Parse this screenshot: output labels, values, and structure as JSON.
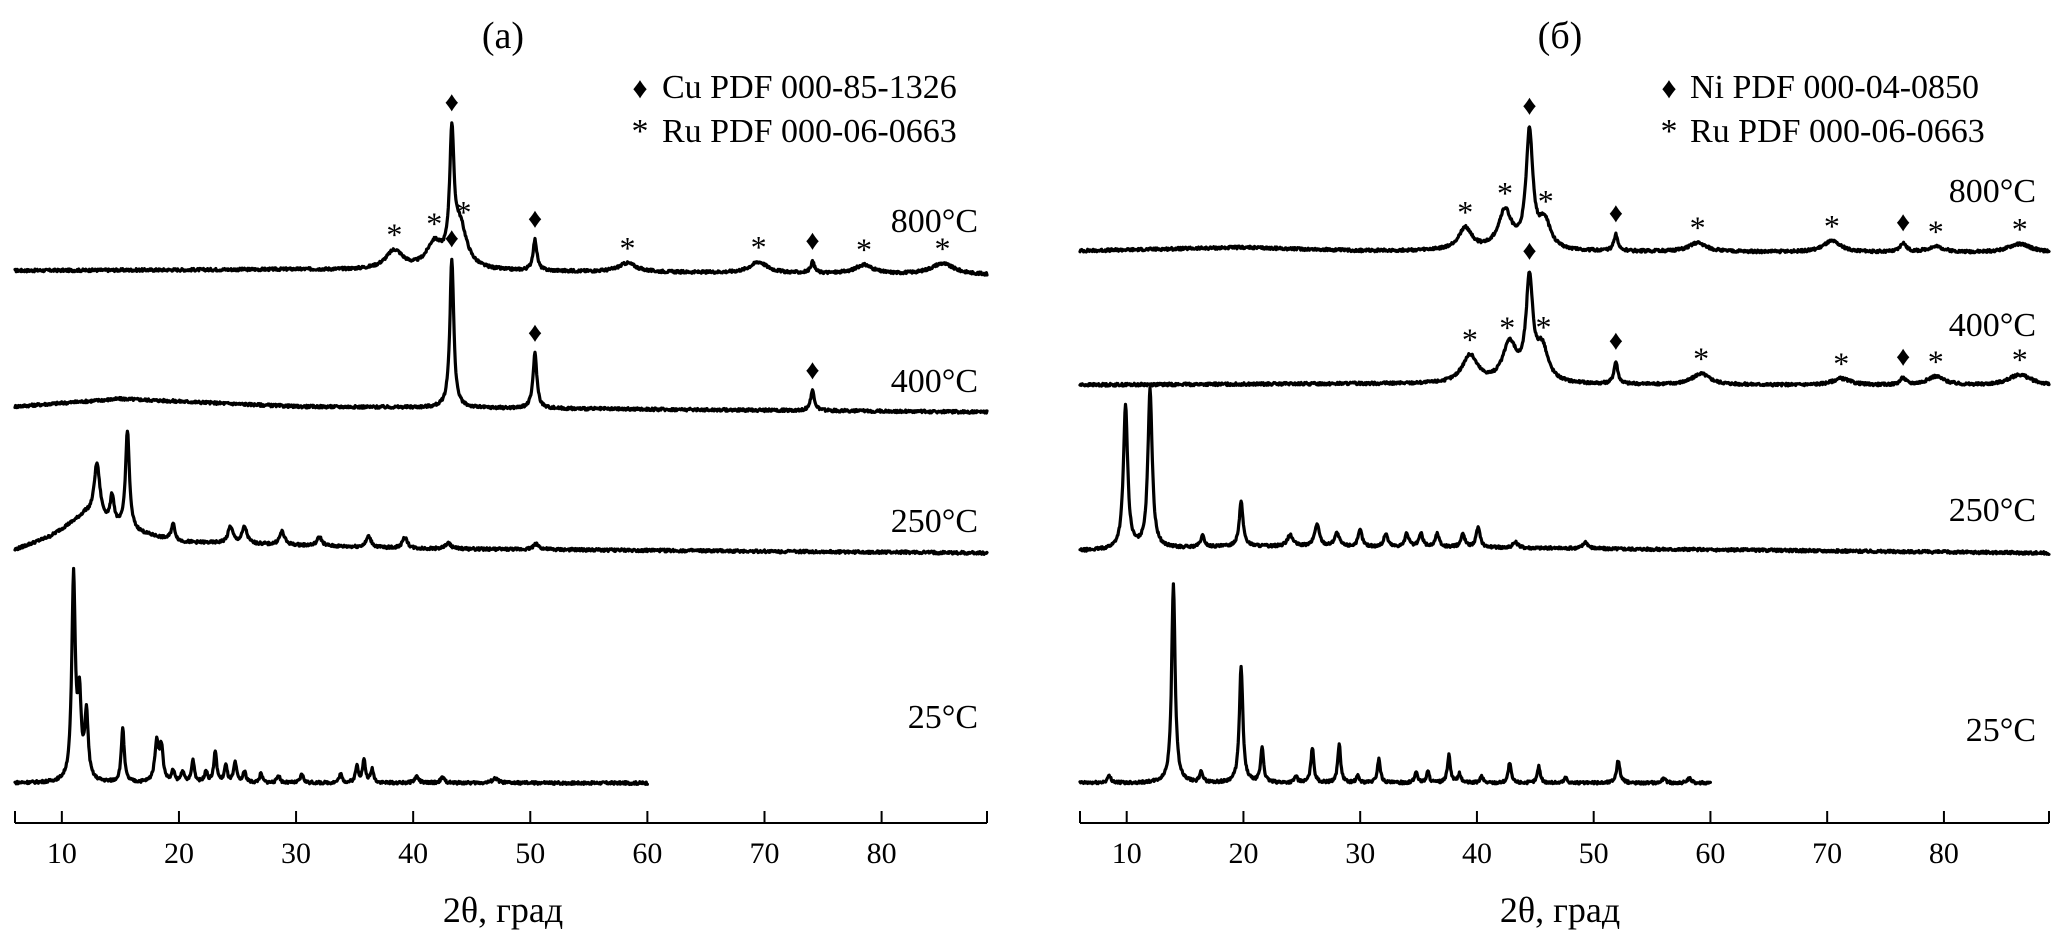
{
  "chart_data": [
    {
      "type": "line",
      "title": "(а)",
      "xlabel": "2θ, град",
      "ylabel": "",
      "xlim": [
        6,
        89
      ],
      "xticks": [
        "10",
        "20",
        "30",
        "40",
        "50",
        "60",
        "70",
        "80"
      ],
      "xtick_values": [
        10,
        20,
        30,
        40,
        50,
        60,
        70,
        80
      ],
      "legend": {
        "placement": "top-right",
        "entries": [
          {
            "symbol": "♦",
            "label": "Cu PDF 000-85-1326"
          },
          {
            "symbol": "*",
            "label": "Ru PDF 000-06-0663"
          }
        ]
      },
      "series": [
        {
          "name": "800°C",
          "x_range": [
            6,
            89
          ],
          "baseline": [
            [
              6,
              0.04
            ],
            [
              30,
              0.05
            ],
            [
              89,
              0.0
            ]
          ],
          "peaks": [
            {
              "x": 38.4,
              "h": 0.17,
              "w": 0.9
            },
            {
              "x": 41.8,
              "h": 0.22,
              "w": 0.8
            },
            {
              "x": 43.3,
              "h": 1.1,
              "w": 0.22
            },
            {
              "x": 44.0,
              "h": 0.38,
              "w": 0.7
            },
            {
              "x": 50.4,
              "h": 0.28,
              "w": 0.2
            },
            {
              "x": 58.3,
              "h": 0.08,
              "w": 0.9
            },
            {
              "x": 69.5,
              "h": 0.1,
              "w": 0.9
            },
            {
              "x": 74.1,
              "h": 0.1,
              "w": 0.2
            },
            {
              "x": 78.5,
              "h": 0.08,
              "w": 0.9
            },
            {
              "x": 85.2,
              "h": 0.1,
              "w": 1.2
            }
          ],
          "markers": [
            {
              "x": 43.3,
              "symbol": "♦"
            },
            {
              "x": 38.4,
              "symbol": "*"
            },
            {
              "x": 41.8,
              "symbol": "*"
            },
            {
              "x": 44.3,
              "symbol": "*"
            },
            {
              "x": 50.4,
              "symbol": "♦"
            },
            {
              "x": 58.3,
              "symbol": "*"
            },
            {
              "x": 69.5,
              "symbol": "*"
            },
            {
              "x": 74.1,
              "symbol": "♦"
            },
            {
              "x": 78.5,
              "symbol": "*"
            },
            {
              "x": 85.2,
              "symbol": "*"
            }
          ]
        },
        {
          "name": "400°C",
          "x_range": [
            6,
            89
          ],
          "baseline": [
            [
              6,
              0.05
            ],
            [
              15,
              0.12
            ],
            [
              30,
              0.05
            ],
            [
              89,
              0.0
            ]
          ],
          "peaks": [
            {
              "x": 43.3,
              "h": 1.35,
              "w": 0.2
            },
            {
              "x": 50.4,
              "h": 0.5,
              "w": 0.2
            },
            {
              "x": 74.1,
              "h": 0.18,
              "w": 0.2
            }
          ],
          "markers": [
            {
              "x": 43.3,
              "symbol": "♦"
            },
            {
              "x": 50.4,
              "symbol": "♦"
            },
            {
              "x": 74.1,
              "symbol": "♦"
            }
          ]
        },
        {
          "name": "250°C",
          "x_range": [
            6,
            89
          ],
          "baseline": [
            [
              6,
              0.03
            ],
            [
              9,
              0.15
            ],
            [
              12,
              0.35
            ],
            [
              15,
              0.22
            ],
            [
              20,
              0.1
            ],
            [
              40,
              0.04
            ],
            [
              89,
              0.0
            ]
          ],
          "peaks": [
            {
              "x": 13.0,
              "h": 0.5,
              "w": 0.3
            },
            {
              "x": 14.3,
              "h": 0.25,
              "w": 0.2
            },
            {
              "x": 15.6,
              "h": 0.9,
              "w": 0.2
            },
            {
              "x": 19.5,
              "h": 0.15,
              "w": 0.2
            },
            {
              "x": 24.4,
              "h": 0.15,
              "w": 0.25
            },
            {
              "x": 25.6,
              "h": 0.15,
              "w": 0.25
            },
            {
              "x": 28.8,
              "h": 0.12,
              "w": 0.25
            },
            {
              "x": 32.0,
              "h": 0.08,
              "w": 0.25
            },
            {
              "x": 36.2,
              "h": 0.1,
              "w": 0.25
            },
            {
              "x": 39.3,
              "h": 0.1,
              "w": 0.25
            },
            {
              "x": 43.0,
              "h": 0.05,
              "w": 0.3
            },
            {
              "x": 50.5,
              "h": 0.05,
              "w": 0.3
            }
          ],
          "markers": []
        },
        {
          "name": "25°C",
          "x_range": [
            6,
            60
          ],
          "baseline": [
            [
              6,
              0.0
            ],
            [
              60,
              0.0
            ]
          ],
          "peaks": [
            {
              "x": 11.0,
              "h": 1.85,
              "w": 0.18
            },
            {
              "x": 11.5,
              "h": 0.7,
              "w": 0.18
            },
            {
              "x": 12.1,
              "h": 0.6,
              "w": 0.18
            },
            {
              "x": 15.2,
              "h": 0.5,
              "w": 0.15
            },
            {
              "x": 18.1,
              "h": 0.35,
              "w": 0.2
            },
            {
              "x": 18.5,
              "h": 0.3,
              "w": 0.18
            },
            {
              "x": 19.5,
              "h": 0.1,
              "w": 0.15
            },
            {
              "x": 20.3,
              "h": 0.1,
              "w": 0.15
            },
            {
              "x": 21.2,
              "h": 0.2,
              "w": 0.15
            },
            {
              "x": 22.3,
              "h": 0.1,
              "w": 0.15
            },
            {
              "x": 23.1,
              "h": 0.28,
              "w": 0.15
            },
            {
              "x": 24.0,
              "h": 0.15,
              "w": 0.15
            },
            {
              "x": 24.8,
              "h": 0.18,
              "w": 0.15
            },
            {
              "x": 25.6,
              "h": 0.1,
              "w": 0.15
            },
            {
              "x": 27.0,
              "h": 0.08,
              "w": 0.15
            },
            {
              "x": 28.5,
              "h": 0.07,
              "w": 0.15
            },
            {
              "x": 30.5,
              "h": 0.08,
              "w": 0.15
            },
            {
              "x": 33.8,
              "h": 0.08,
              "w": 0.15
            },
            {
              "x": 35.2,
              "h": 0.15,
              "w": 0.15
            },
            {
              "x": 35.8,
              "h": 0.2,
              "w": 0.15
            },
            {
              "x": 36.5,
              "h": 0.12,
              "w": 0.15
            },
            {
              "x": 40.3,
              "h": 0.06,
              "w": 0.2
            },
            {
              "x": 42.5,
              "h": 0.05,
              "w": 0.2
            },
            {
              "x": 47.0,
              "h": 0.04,
              "w": 0.3
            }
          ],
          "markers": []
        }
      ]
    },
    {
      "type": "line",
      "title": "(б)",
      "xlabel": "2θ, град",
      "ylabel": "",
      "xlim": [
        6,
        89
      ],
      "xticks": [
        "10",
        "20",
        "30",
        "40",
        "50",
        "60",
        "70",
        "80"
      ],
      "xtick_values": [
        10,
        20,
        30,
        40,
        50,
        60,
        70,
        80
      ],
      "legend": {
        "placement": "top-right",
        "entries": [
          {
            "symbol": "♦",
            "label": "Ni PDF 000-04-0850"
          },
          {
            "symbol": "*",
            "label": "Ru PDF 000-06-0663"
          }
        ]
      },
      "series": [
        {
          "name": "800°C",
          "x_range": [
            6,
            89
          ],
          "baseline": [
            [
              6,
              0.02
            ],
            [
              20,
              0.05
            ],
            [
              30,
              0.02
            ],
            [
              89,
              0.0
            ]
          ],
          "peaks": [
            {
              "x": 39.0,
              "h": 0.2,
              "w": 0.7
            },
            {
              "x": 42.4,
              "h": 0.35,
              "w": 0.7
            },
            {
              "x": 44.5,
              "h": 1.05,
              "w": 0.35
            },
            {
              "x": 45.8,
              "h": 0.25,
              "w": 0.6
            },
            {
              "x": 51.9,
              "h": 0.15,
              "w": 0.2
            },
            {
              "x": 58.9,
              "h": 0.08,
              "w": 0.9
            },
            {
              "x": 70.4,
              "h": 0.1,
              "w": 0.9
            },
            {
              "x": 76.5,
              "h": 0.08,
              "w": 0.3
            },
            {
              "x": 79.3,
              "h": 0.05,
              "w": 0.9
            },
            {
              "x": 86.5,
              "h": 0.08,
              "w": 1.2
            }
          ],
          "markers": [
            {
              "x": 44.5,
              "symbol": "♦"
            },
            {
              "x": 39.0,
              "symbol": "*"
            },
            {
              "x": 42.4,
              "symbol": "*"
            },
            {
              "x": 45.9,
              "symbol": "*"
            },
            {
              "x": 51.9,
              "symbol": "♦"
            },
            {
              "x": 58.9,
              "symbol": "*"
            },
            {
              "x": 70.4,
              "symbol": "*"
            },
            {
              "x": 76.5,
              "symbol": "♦"
            },
            {
              "x": 79.3,
              "symbol": "*"
            },
            {
              "x": 86.5,
              "symbol": "*"
            }
          ]
        },
        {
          "name": "400°C",
          "x_range": [
            6,
            89
          ],
          "baseline": [
            [
              6,
              0.01
            ],
            [
              30,
              0.02
            ],
            [
              89,
              0.0
            ]
          ],
          "peaks": [
            {
              "x": 39.4,
              "h": 0.25,
              "w": 0.8
            },
            {
              "x": 42.8,
              "h": 0.35,
              "w": 0.7
            },
            {
              "x": 44.5,
              "h": 0.9,
              "w": 0.35
            },
            {
              "x": 45.6,
              "h": 0.3,
              "w": 0.6
            },
            {
              "x": 51.9,
              "h": 0.2,
              "w": 0.2
            },
            {
              "x": 59.2,
              "h": 0.1,
              "w": 0.9
            },
            {
              "x": 71.2,
              "h": 0.06,
              "w": 0.9
            },
            {
              "x": 76.5,
              "h": 0.06,
              "w": 0.3
            },
            {
              "x": 79.3,
              "h": 0.08,
              "w": 0.9
            },
            {
              "x": 86.5,
              "h": 0.1,
              "w": 1.2
            }
          ],
          "markers": [
            {
              "x": 44.5,
              "symbol": "♦"
            },
            {
              "x": 39.4,
              "symbol": "*"
            },
            {
              "x": 42.6,
              "symbol": "*"
            },
            {
              "x": 45.7,
              "symbol": "*"
            },
            {
              "x": 51.9,
              "symbol": "♦"
            },
            {
              "x": 59.2,
              "symbol": "*"
            },
            {
              "x": 71.2,
              "symbol": "*"
            },
            {
              "x": 76.5,
              "symbol": "♦"
            },
            {
              "x": 79.3,
              "symbol": "*"
            },
            {
              "x": 86.5,
              "symbol": "*"
            }
          ]
        },
        {
          "name": "250°C",
          "x_range": [
            6,
            89
          ],
          "baseline": [
            [
              6,
              0.02
            ],
            [
              20,
              0.06
            ],
            [
              40,
              0.05
            ],
            [
              89,
              0.0
            ]
          ],
          "peaks": [
            {
              "x": 9.9,
              "h": 1.3,
              "w": 0.22
            },
            {
              "x": 12.0,
              "h": 1.45,
              "w": 0.22
            },
            {
              "x": 16.5,
              "h": 0.1,
              "w": 0.2
            },
            {
              "x": 19.8,
              "h": 0.4,
              "w": 0.2
            },
            {
              "x": 24.0,
              "h": 0.1,
              "w": 0.3
            },
            {
              "x": 26.3,
              "h": 0.2,
              "w": 0.25
            },
            {
              "x": 28.0,
              "h": 0.12,
              "w": 0.25
            },
            {
              "x": 30.0,
              "h": 0.15,
              "w": 0.2
            },
            {
              "x": 32.2,
              "h": 0.12,
              "w": 0.2
            },
            {
              "x": 34.0,
              "h": 0.12,
              "w": 0.2
            },
            {
              "x": 35.2,
              "h": 0.12,
              "w": 0.2
            },
            {
              "x": 36.6,
              "h": 0.12,
              "w": 0.2
            },
            {
              "x": 38.8,
              "h": 0.12,
              "w": 0.2
            },
            {
              "x": 40.1,
              "h": 0.18,
              "w": 0.2
            },
            {
              "x": 43.3,
              "h": 0.05,
              "w": 0.25
            },
            {
              "x": 49.3,
              "h": 0.06,
              "w": 0.25
            }
          ],
          "markers": []
        },
        {
          "name": "25°C",
          "x_range": [
            6,
            60
          ],
          "baseline": [
            [
              6,
              0.0
            ],
            [
              60,
              0.0
            ]
          ],
          "peaks": [
            {
              "x": 8.5,
              "h": 0.06,
              "w": 0.2
            },
            {
              "x": 14.0,
              "h": 1.8,
              "w": 0.18
            },
            {
              "x": 16.4,
              "h": 0.1,
              "w": 0.15
            },
            {
              "x": 19.8,
              "h": 1.05,
              "w": 0.18
            },
            {
              "x": 21.6,
              "h": 0.32,
              "w": 0.15
            },
            {
              "x": 24.5,
              "h": 0.06,
              "w": 0.15
            },
            {
              "x": 25.9,
              "h": 0.32,
              "w": 0.15
            },
            {
              "x": 28.2,
              "h": 0.35,
              "w": 0.15
            },
            {
              "x": 29.8,
              "h": 0.06,
              "w": 0.15
            },
            {
              "x": 31.6,
              "h": 0.22,
              "w": 0.15
            },
            {
              "x": 34.8,
              "h": 0.1,
              "w": 0.15
            },
            {
              "x": 35.8,
              "h": 0.1,
              "w": 0.15
            },
            {
              "x": 37.6,
              "h": 0.25,
              "w": 0.15
            },
            {
              "x": 38.5,
              "h": 0.08,
              "w": 0.15
            },
            {
              "x": 40.4,
              "h": 0.06,
              "w": 0.15
            },
            {
              "x": 42.8,
              "h": 0.18,
              "w": 0.15
            },
            {
              "x": 45.3,
              "h": 0.15,
              "w": 0.15
            },
            {
              "x": 47.6,
              "h": 0.05,
              "w": 0.15
            },
            {
              "x": 52.1,
              "h": 0.2,
              "w": 0.18
            },
            {
              "x": 56.0,
              "h": 0.04,
              "w": 0.2
            },
            {
              "x": 58.2,
              "h": 0.04,
              "w": 0.2
            }
          ],
          "markers": []
        }
      ]
    }
  ]
}
